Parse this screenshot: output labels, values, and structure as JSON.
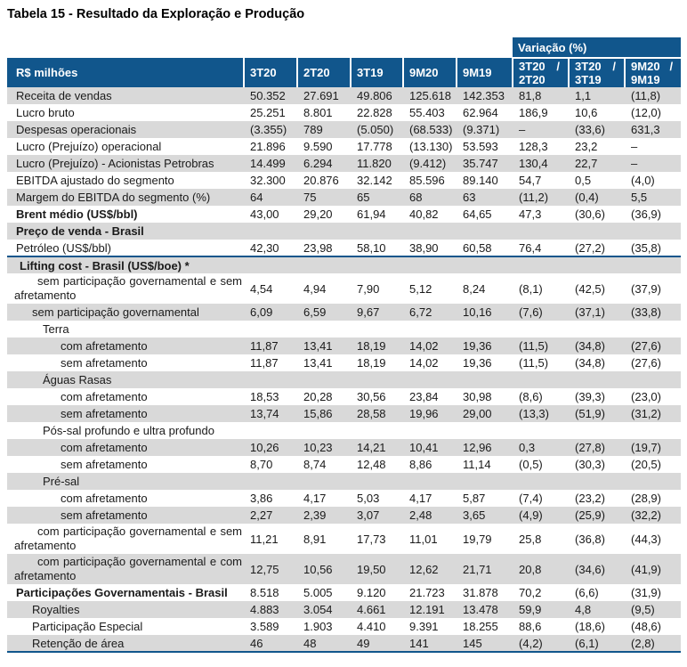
{
  "title": "Tabela 15 - Resultado da Exploração e Produção",
  "table": {
    "row_label_header": "R$ milhões",
    "period_headers": [
      "3T20",
      "2T20",
      "3T19",
      "9M20",
      "9M19"
    ],
    "variation_header": "Variação (%)",
    "slash": "/",
    "variation_subheaders": [
      {
        "top": "3T20",
        "bottom": "2T20"
      },
      {
        "top": "3T20",
        "bottom": "3T19"
      },
      {
        "top": "9M20",
        "bottom": "9M19"
      }
    ],
    "colors": {
      "header_blue": "#11568C",
      "stripe_gray": "#D9D9D9",
      "text": "#1A1A1A"
    },
    "rows": [
      {
        "label": "Receita de vendas",
        "indent": "i0",
        "bold": false,
        "values": [
          "50.352",
          "27.691",
          "49.806",
          "125.618",
          "142.353",
          "81,8",
          "1,1",
          "(11,8)"
        ]
      },
      {
        "label": "Lucro bruto",
        "indent": "i0",
        "bold": false,
        "values": [
          "25.251",
          "8.801",
          "22.828",
          "55.403",
          "62.964",
          "186,9",
          "10,6",
          "(12,0)"
        ]
      },
      {
        "label": "Despesas operacionais",
        "indent": "i0",
        "bold": false,
        "values": [
          "(3.355)",
          "789",
          "(5.050)",
          "(68.533)",
          "(9.371)",
          "–",
          "(33,6)",
          "631,3"
        ]
      },
      {
        "label": "Lucro (Prejuízo) operacional",
        "indent": "i0",
        "bold": false,
        "values": [
          "21.896",
          "9.590",
          "17.778",
          "(13.130)",
          "53.593",
          "128,3",
          "23,2",
          "–"
        ]
      },
      {
        "label": "Lucro (Prejuízo) - Acionistas Petrobras",
        "indent": "i0",
        "bold": false,
        "values": [
          "14.499",
          "6.294",
          "11.820",
          "(9.412)",
          "35.747",
          "130,4",
          "22,7",
          "–"
        ]
      },
      {
        "label": "EBITDA ajustado do segmento",
        "indent": "i0",
        "bold": false,
        "values": [
          "32.300",
          "20.876",
          "32.142",
          "85.596",
          "89.140",
          "54,7",
          "0,5",
          "(4,0)"
        ]
      },
      {
        "label": "Margem do EBITDA do segmento (%)",
        "indent": "i0",
        "bold": false,
        "values": [
          "64",
          "75",
          "65",
          "68",
          "63",
          "(11,2)",
          "(0,4)",
          "5,5"
        ]
      },
      {
        "label": "Brent médio (US$/bbl)",
        "indent": "i0",
        "bold": true,
        "values": [
          "43,00",
          "29,20",
          "61,94",
          "40,82",
          "64,65",
          "47,3",
          "(30,6)",
          "(36,9)"
        ]
      },
      {
        "label": "Preço de venda - Brasil",
        "indent": "i0",
        "bold": true,
        "values": []
      },
      {
        "label": "Petróleo (US$/bbl)",
        "indent": "i0",
        "bold": false,
        "rule_below": true,
        "values": [
          "42,30",
          "23,98",
          "58,10",
          "38,90",
          "60,58",
          "76,4",
          "(27,2)",
          "(35,8)"
        ]
      },
      {
        "label": "Lifting cost - Brasil (US$/boe) *",
        "indent": "lift",
        "bold": true,
        "values": []
      },
      {
        "label": "sem participação governamental e sem afretamento",
        "indent": "hang",
        "bold": false,
        "values": [
          "4,54",
          "4,94",
          "7,90",
          "5,12",
          "8,24",
          "(8,1)",
          "(42,5)",
          "(37,9)"
        ]
      },
      {
        "label": "sem participação governamental",
        "indent": "i1",
        "bold": false,
        "values": [
          "6,09",
          "6,59",
          "9,67",
          "6,72",
          "10,16",
          "(7,6)",
          "(37,1)",
          "(33,8)"
        ]
      },
      {
        "label": "Terra",
        "indent": "i2",
        "bold": false,
        "values": []
      },
      {
        "label": "com afretamento",
        "indent": "i3",
        "bold": false,
        "values": [
          "11,87",
          "13,41",
          "18,19",
          "14,02",
          "19,36",
          "(11,5)",
          "(34,8)",
          "(27,6)"
        ]
      },
      {
        "label": "sem afretamento",
        "indent": "i3",
        "bold": false,
        "values": [
          "11,87",
          "13,41",
          "18,19",
          "14,02",
          "19,36",
          "(11,5)",
          "(34,8)",
          "(27,6)"
        ]
      },
      {
        "label": "Águas Rasas",
        "indent": "i2",
        "bold": false,
        "values": []
      },
      {
        "label": "com afretamento",
        "indent": "i3",
        "bold": false,
        "values": [
          "18,53",
          "20,28",
          "30,56",
          "23,84",
          "30,98",
          "(8,6)",
          "(39,3)",
          "(23,0)"
        ]
      },
      {
        "label": "sem afretamento",
        "indent": "i3",
        "bold": false,
        "values": [
          "13,74",
          "15,86",
          "28,58",
          "19,96",
          "29,00",
          "(13,3)",
          "(51,9)",
          "(31,2)"
        ]
      },
      {
        "label": "Pós-sal profundo e ultra profundo",
        "indent": "i2",
        "bold": false,
        "values": []
      },
      {
        "label": "com afretamento",
        "indent": "i3",
        "bold": false,
        "values": [
          "10,26",
          "10,23",
          "14,21",
          "10,41",
          "12,96",
          "0,3",
          "(27,8)",
          "(19,7)"
        ]
      },
      {
        "label": "sem afretamento",
        "indent": "i3",
        "bold": false,
        "values": [
          "8,70",
          "8,74",
          "12,48",
          "8,86",
          "11,14",
          "(0,5)",
          "(30,3)",
          "(20,5)"
        ]
      },
      {
        "label": "Pré-sal",
        "indent": "i2",
        "bold": false,
        "values": []
      },
      {
        "label": "com afretamento",
        "indent": "i3",
        "bold": false,
        "values": [
          "3,86",
          "4,17",
          "5,03",
          "4,17",
          "5,87",
          "(7,4)",
          "(23,2)",
          "(28,9)"
        ]
      },
      {
        "label": "sem afretamento",
        "indent": "i3",
        "bold": false,
        "values": [
          "2,27",
          "2,39",
          "3,07",
          "2,48",
          "3,65",
          "(4,9)",
          "(25,9)",
          "(32,2)"
        ]
      },
      {
        "label": "com participação governamental e sem afretamento",
        "indent": "hang",
        "bold": false,
        "values": [
          "11,21",
          "8,91",
          "17,73",
          "11,01",
          "19,79",
          "25,8",
          "(36,8)",
          "(44,3)"
        ]
      },
      {
        "label": "com participação governamental e com afretamento",
        "indent": "hang",
        "bold": false,
        "values": [
          "12,75",
          "10,56",
          "19,50",
          "12,62",
          "21,71",
          "20,8",
          "(34,6)",
          "(41,9)"
        ]
      },
      {
        "label": "Participações Governamentais - Brasil",
        "indent": "i0",
        "bold": true,
        "values": [
          "8.518",
          "5.005",
          "9.120",
          "21.723",
          "31.878",
          "70,2",
          "(6,6)",
          "(31,9)"
        ]
      },
      {
        "label": "Royalties",
        "indent": "i1",
        "bold": false,
        "values": [
          "4.883",
          "3.054",
          "4.661",
          "12.191",
          "13.478",
          "59,9",
          "4,8",
          "(9,5)"
        ]
      },
      {
        "label": "Participação Especial",
        "indent": "i1",
        "bold": false,
        "values": [
          "3.589",
          "1.903",
          "4.410",
          "9.391",
          "18.255",
          "88,6",
          "(18,6)",
          "(48,6)"
        ]
      },
      {
        "label": "Retenção de área",
        "indent": "i1",
        "bold": false,
        "values": [
          "46",
          "48",
          "49",
          "141",
          "145",
          "(4,2)",
          "(6,1)",
          "(2,8)"
        ]
      }
    ]
  }
}
